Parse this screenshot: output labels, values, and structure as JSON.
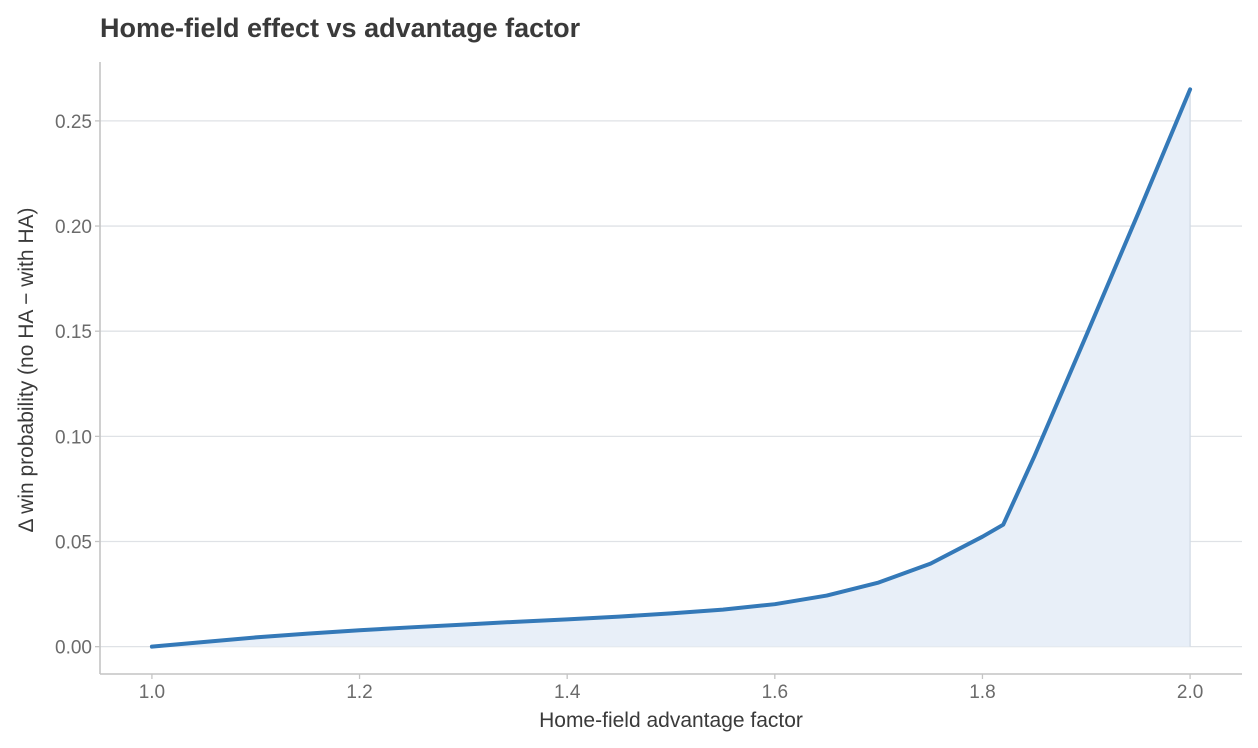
{
  "chart_data": {
    "type": "area",
    "title": "Home-field effect vs advantage factor",
    "xlabel": "Home-field advantage factor",
    "ylabel": "Δ win probability (no HA − with HA)",
    "xlim": [
      0.95,
      2.05
    ],
    "ylim": [
      -0.013,
      0.278
    ],
    "x_ticks": [
      1.0,
      1.2,
      1.4,
      1.6,
      1.8,
      2.0
    ],
    "x_tick_labels": [
      "1.0",
      "1.2",
      "1.4",
      "1.6",
      "1.8",
      "2.0"
    ],
    "y_ticks": [
      0.0,
      0.05,
      0.1,
      0.15,
      0.2,
      0.25
    ],
    "y_tick_labels": [
      "0.00",
      "0.05",
      "0.10",
      "0.15",
      "0.20",
      "0.25"
    ],
    "grid": "horizontal",
    "legend": "none",
    "colors": {
      "line": "#3479b8",
      "fill": "#e8eff8",
      "fill_edge": "#d2dbe6"
    },
    "series": [
      {
        "x": [
          1.0,
          1.05,
          1.1,
          1.15,
          1.2,
          1.25,
          1.3,
          1.35,
          1.4,
          1.45,
          1.5,
          1.55,
          1.6,
          1.65,
          1.7,
          1.75,
          1.8,
          1.82,
          1.85,
          1.9,
          1.95,
          2.0
        ],
        "values": [
          0.0,
          0.0022,
          0.0044,
          0.0062,
          0.0078,
          0.0092,
          0.0105,
          0.0118,
          0.013,
          0.0143,
          0.0158,
          0.0176,
          0.0202,
          0.0243,
          0.0305,
          0.0395,
          0.0523,
          0.058,
          0.0905,
          0.148,
          0.206,
          0.265
        ]
      }
    ]
  }
}
